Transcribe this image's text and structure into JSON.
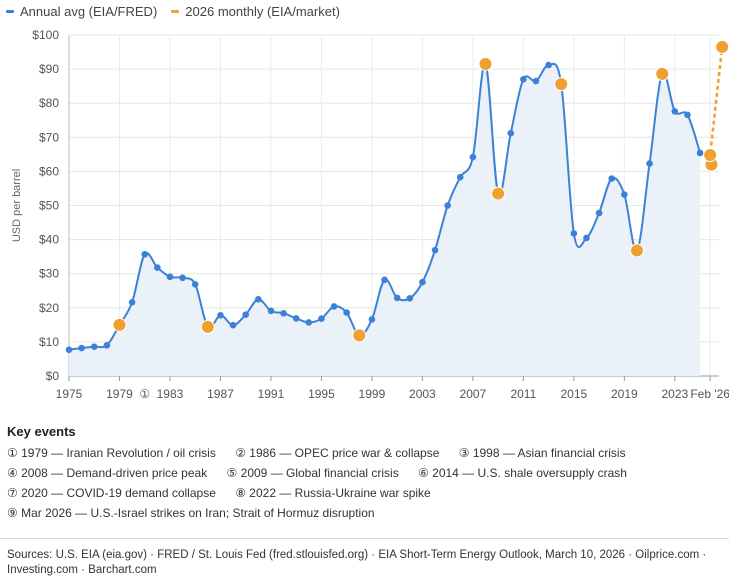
{
  "legend": [
    {
      "label": "Annual avg (EIA/FRED)",
      "color": "#3b82d6"
    },
    {
      "label": "2026 monthly (EIA/market)",
      "color": "#f0a030"
    }
  ],
  "chart_data": {
    "type": "line",
    "title": "",
    "xlabel": "",
    "ylabel": "USD per barrel",
    "xlim": [
      1975,
      2026.5
    ],
    "ylim": [
      0,
      100
    ],
    "y_ticks": [
      0,
      10,
      20,
      30,
      40,
      50,
      60,
      70,
      80,
      90,
      100
    ],
    "y_tick_labels": [
      "$0",
      "$10",
      "$20",
      "$30",
      "$40",
      "$50",
      "$60",
      "$70",
      "$80",
      "$90",
      "$100"
    ],
    "x_ticks": [
      {
        "value": 1975,
        "label": "1975"
      },
      {
        "value": 1979,
        "label": "1979"
      },
      {
        "value": 1983,
        "label": "1983"
      },
      {
        "value": 1987,
        "label": "1987"
      },
      {
        "value": 1991,
        "label": "1991"
      },
      {
        "value": 1995,
        "label": "1995"
      },
      {
        "value": 1999,
        "label": "1999"
      },
      {
        "value": 2003,
        "label": "2003"
      },
      {
        "value": 2007,
        "label": "2007"
      },
      {
        "value": 2011,
        "label": "2011"
      },
      {
        "value": 2015,
        "label": "2015"
      },
      {
        "value": 2019,
        "label": "2019"
      },
      {
        "value": 2023,
        "label": "2023"
      },
      {
        "value": 2025.8,
        "label": "Feb '26"
      }
    ],
    "marker_annotations": [
      {
        "value": 1981,
        "label": "①"
      }
    ],
    "series": [
      {
        "name": "Annual avg (EIA/FRED)",
        "color": "#3b82d6",
        "x": [
          1975,
          1976,
          1977,
          1978,
          1979,
          1980,
          1981,
          1982,
          1983,
          1984,
          1985,
          1986,
          1987,
          1988,
          1989,
          1990,
          1991,
          1992,
          1993,
          1994,
          1995,
          1996,
          1997,
          1998,
          1999,
          2000,
          2001,
          2002,
          2003,
          2004,
          2005,
          2006,
          2007,
          2008,
          2009,
          2010,
          2011,
          2012,
          2013,
          2014,
          2015,
          2016,
          2017,
          2018,
          2019,
          2020,
          2021,
          2022,
          2023,
          2024
        ],
        "values": [
          7.7,
          8.2,
          8.6,
          9.0,
          15.0,
          21.6,
          35.7,
          31.8,
          29.1,
          28.8,
          26.9,
          14.4,
          17.8,
          14.9,
          18.0,
          22.5,
          19.1,
          18.4,
          16.9,
          15.7,
          16.8,
          20.4,
          18.6,
          11.9,
          16.6,
          28.2,
          22.9,
          22.8,
          27.5,
          36.9,
          50.0,
          58.3,
          64.2,
          91.5,
          53.5,
          71.2,
          87.0,
          86.5,
          91.2,
          85.6,
          41.8,
          40.5,
          47.8,
          57.9,
          53.2,
          36.8,
          62.3,
          88.6,
          77.6,
          76.6
        ]
      },
      {
        "name": "2026 monthly (EIA/market)",
        "color": "#f0a030",
        "style": "dashed",
        "x": [
          2024.9,
          2025.8,
          2026.75
        ],
        "values": [
          65.2,
          64.8,
          96.5
        ]
      }
    ],
    "extra_points": [
      {
        "x": 2025,
        "value": 65.4,
        "series": "Annual avg (EIA/FRED)"
      },
      {
        "x": 2025.9,
        "value": 62.0,
        "series": "2026 monthly (EIA/market)"
      }
    ],
    "highlight_points": [
      {
        "x": 1979,
        "value": 15.0
      },
      {
        "x": 1986,
        "value": 14.4
      },
      {
        "x": 1998,
        "value": 11.9
      },
      {
        "x": 2008,
        "value": 91.5
      },
      {
        "x": 2009,
        "value": 53.5
      },
      {
        "x": 2014,
        "value": 85.6
      },
      {
        "x": 2020,
        "value": 36.8
      },
      {
        "x": 2022,
        "value": 88.6
      }
    ]
  },
  "key_events": {
    "title": "Key events",
    "rows": [
      [
        "① 1979 — Iranian Revolution / oil crisis",
        "② 1986 — OPEC price war & collapse",
        "③ 1998 — Asian financial crisis"
      ],
      [
        "④ 2008 — Demand-driven price peak",
        "⑤ 2009 — Global financial crisis",
        "⑥ 2014 — U.S. shale oversupply crash"
      ],
      [
        "⑦ 2020 — COVID-19 demand collapse",
        "⑧ 2022 — Russia-Ukraine war spike"
      ],
      [
        "⑨ Mar 2026 — U.S.-Israel strikes on Iran; Strait of Hormuz disruption"
      ]
    ]
  },
  "footer": {
    "sources": "Sources: U.S. EIA (eia.gov) · FRED / St. Louis Fed (fred.stlouisfed.org) · EIA Short-Term Energy Outlook, March 10, 2026 · Oilprice.com · Investing.com · Barchart.com"
  }
}
